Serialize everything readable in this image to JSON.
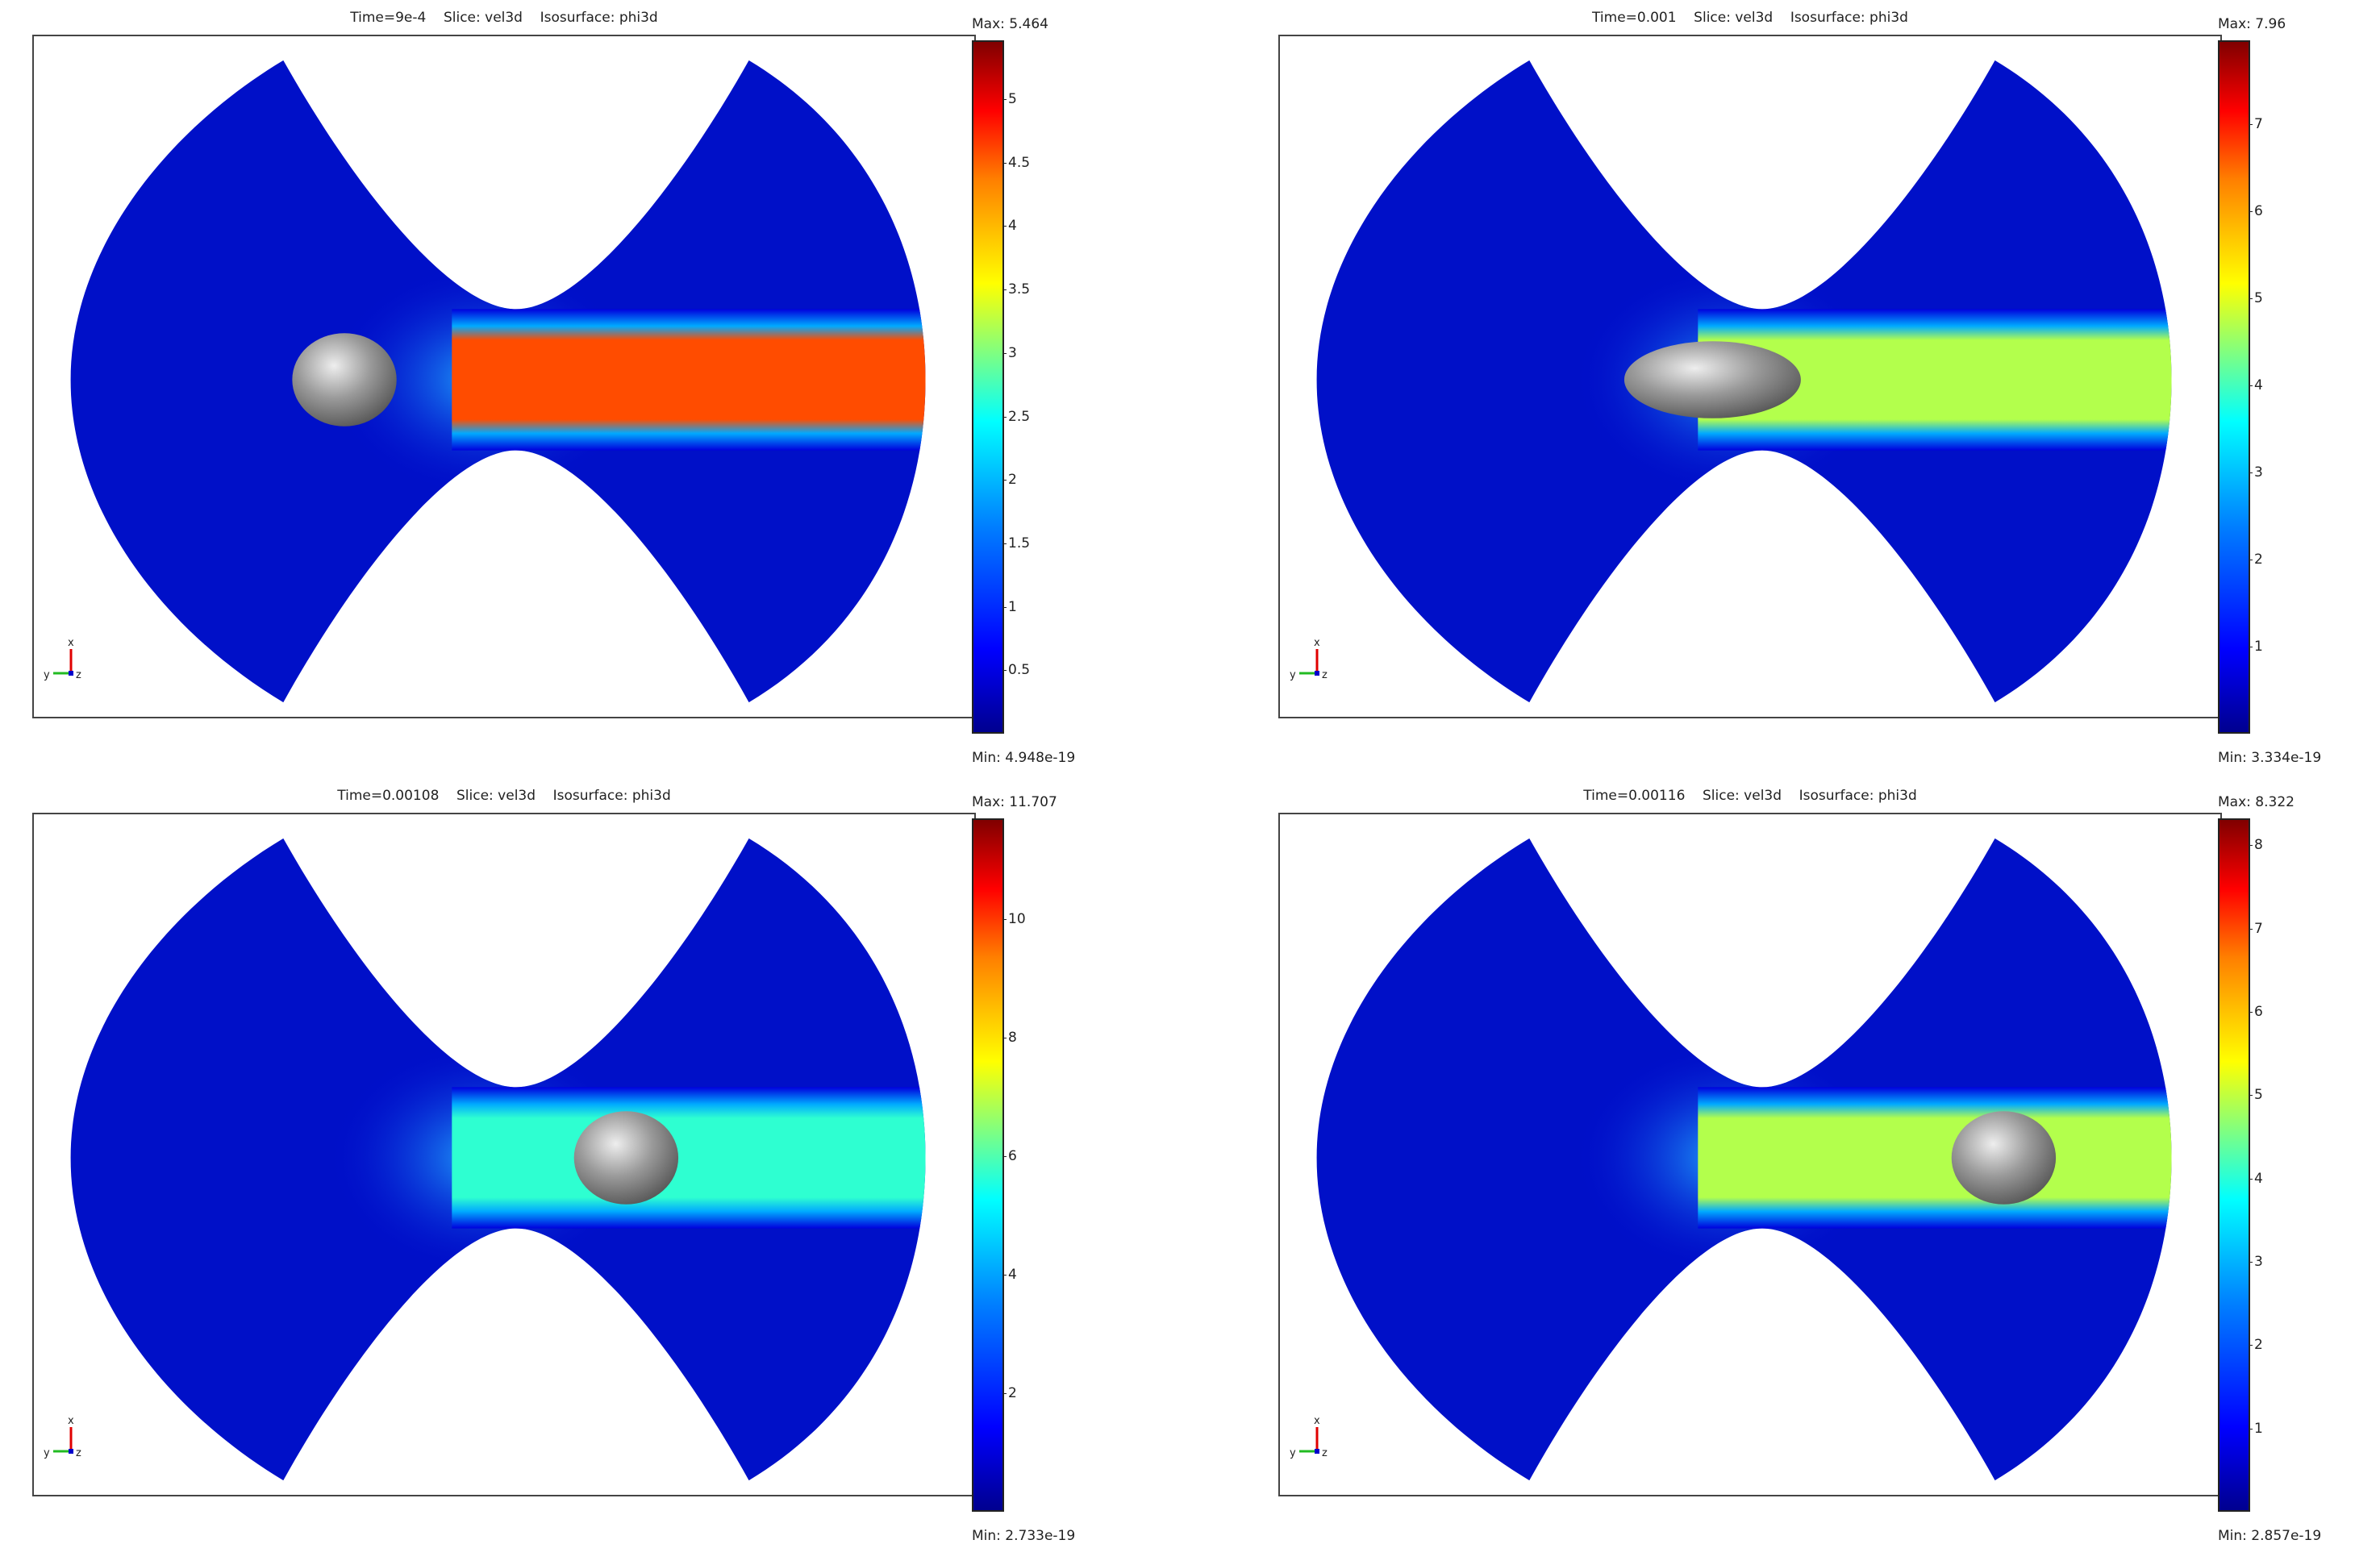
{
  "panels": [
    {
      "title": "Time=9e-4    Slice: vel3d    Isosurface: phi3d",
      "max_label": "Max: 5.464",
      "min_label": "Min: 4.948e-19",
      "ticks": [
        "0.5",
        "1",
        "1.5",
        "2",
        "2.5",
        "3",
        "3.5",
        "4",
        "4.5",
        "5"
      ],
      "tick_values": [
        0.5,
        1,
        1.5,
        2,
        2.5,
        3,
        3.5,
        4,
        4.5,
        5
      ],
      "max_value": 5.464,
      "jet_level": 0.8,
      "droplet_x": 0.33,
      "axis_labels": {
        "x": "x",
        "y": "y",
        "z": "z"
      }
    },
    {
      "title": "Time=0.001    Slice: vel3d    Isosurface: phi3d",
      "max_label": "Max: 7.96",
      "min_label": "Min: 3.334e-19",
      "ticks": [
        "1",
        "2",
        "3",
        "4",
        "5",
        "6",
        "7"
      ],
      "tick_values": [
        1,
        2,
        3,
        4,
        5,
        6,
        7
      ],
      "max_value": 7.96,
      "jet_level": 0.55,
      "droplet_x": 0.46,
      "axis_labels": {
        "x": "x",
        "y": "y",
        "z": "z"
      }
    },
    {
      "title": "Time=0.00108    Slice: vel3d    Isosurface: phi3d",
      "max_label": "Max: 11.707",
      "min_label": "Min: 2.733e-19",
      "ticks": [
        "2",
        "4",
        "6",
        "8",
        "10"
      ],
      "tick_values": [
        2,
        4,
        6,
        8,
        10
      ],
      "max_value": 11.707,
      "jet_level": 0.42,
      "droplet_x": 0.63,
      "axis_labels": {
        "x": "x",
        "y": "y",
        "z": "z"
      }
    },
    {
      "title": "Time=0.00116    Slice: vel3d    Isosurface: phi3d",
      "max_label": "Max: 8.322",
      "min_label": "Min: 2.857e-19",
      "ticks": [
        "1",
        "2",
        "3",
        "4",
        "5",
        "6",
        "7",
        "8"
      ],
      "tick_values": [
        1,
        2,
        3,
        4,
        5,
        6,
        7,
        8
      ],
      "max_value": 8.322,
      "jet_level": 0.55,
      "droplet_x": 0.77,
      "axis_labels": {
        "x": "x",
        "y": "y",
        "z": "z"
      }
    }
  ]
}
